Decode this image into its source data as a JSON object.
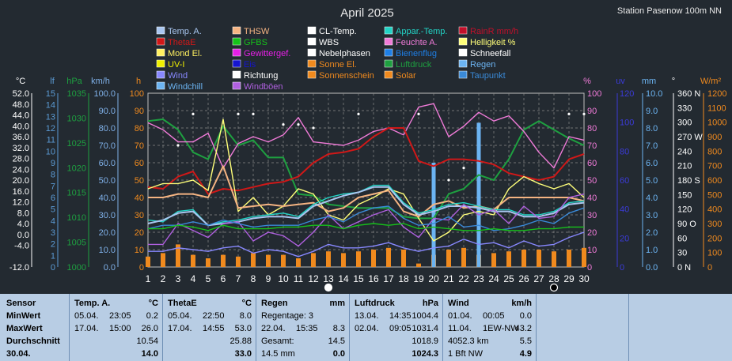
{
  "title": "April 2025",
  "station": "Station Pasenow 100m NN",
  "legend": [
    {
      "label": "Temp. A.",
      "color": "#a9c6f0"
    },
    {
      "label": "THSW",
      "color": "#f5b482"
    },
    {
      "label": "CL-Temp.",
      "color": "#ffffff"
    },
    {
      "label": "Appar.-Temp.",
      "color": "#22d3c5"
    },
    {
      "label": "RainR mm/h",
      "color": "#c0102a"
    },
    {
      "label": "ThetaE",
      "color": "#d01818"
    },
    {
      "label": "GFBS",
      "color": "#16c21a"
    },
    {
      "label": "WBS",
      "color": "#ffffff"
    },
    {
      "label": "Feuchte A.",
      "color": "#f07bd8"
    },
    {
      "label": "Helligkeit %",
      "color": "#ffff7a"
    },
    {
      "label": "Mond El.",
      "color": "#fff060"
    },
    {
      "label": "Gewittergef.",
      "color": "#e620e6"
    },
    {
      "label": "Nebelphasen",
      "color": "#ffffff"
    },
    {
      "label": "Bienenflug",
      "color": "#1e7fe6"
    },
    {
      "label": "Schneefall",
      "color": "#ffffff"
    },
    {
      "label": "UV-I",
      "color": "#f0f000"
    },
    {
      "label": "Eis",
      "color": "#1515d0"
    },
    {
      "label": "Sonne El.",
      "color": "#f08a1e"
    },
    {
      "label": "Luftdruck",
      "color": "#1ea040"
    },
    {
      "label": "Regen",
      "color": "#6cb4f2"
    },
    {
      "label": "Wind",
      "color": "#8888ff"
    },
    {
      "label": "Richtung",
      "color": "#ffffff"
    },
    {
      "label": "Sonnenschein",
      "color": "#f08a1e"
    },
    {
      "label": "Solar",
      "color": "#f08a1e"
    },
    {
      "label": "Taupunkt",
      "color": "#3a8ad8"
    },
    {
      "label": "Windchill",
      "color": "#6cb4f2"
    },
    {
      "label": "Windböen",
      "color": "#b060e0"
    }
  ],
  "axes_units": {
    "temp": "°C",
    "bft": "lf",
    "pressure": "hPa",
    "wind": "km/h",
    "hours": "h",
    "percent": "%",
    "uv": "uv",
    "rain": "mm",
    "direction": "°",
    "solar": "W/m²"
  },
  "chart_data": {
    "type": "line",
    "x": [
      1,
      2,
      3,
      4,
      5,
      6,
      7,
      8,
      9,
      10,
      11,
      12,
      13,
      14,
      15,
      16,
      17,
      18,
      19,
      20,
      21,
      22,
      23,
      24,
      25,
      26,
      27,
      28,
      29,
      30
    ],
    "xlim": [
      1,
      30
    ],
    "ylim": [
      0,
      100
    ],
    "grid": true,
    "axes": {
      "temp_c": {
        "min": -12,
        "max": 52,
        "ticks": [
          "52.0",
          "48.0",
          "44.0",
          "40.0",
          "36.0",
          "32.0",
          "28.0",
          "24.0",
          "20.0",
          "16.0",
          "12.0",
          "8.0",
          "4.0",
          "0.0",
          "-4.0",
          "",
          "-12.0"
        ]
      },
      "bft": {
        "min": 0,
        "max": 15,
        "ticks": [
          "15",
          "14",
          "13",
          "12",
          "11",
          "10",
          "9",
          "8",
          "7",
          "6",
          "5",
          "4",
          "3",
          "2",
          "1",
          "0"
        ]
      },
      "hpa": {
        "min": 1000,
        "max": 1035,
        "ticks": [
          "1035",
          "1030",
          "1025",
          "1020",
          "1015",
          "1010",
          "1005",
          "1000"
        ]
      },
      "kmh": {
        "min": 0,
        "max": 100,
        "ticks": [
          "100.0",
          "90.0",
          "80.0",
          "70.0",
          "60.0",
          "50.0",
          "40.0",
          "30.0",
          "20.0",
          "10.0",
          "0.0"
        ]
      },
      "hours": {
        "min": 0,
        "max": 100,
        "ticks": [
          "100",
          "90",
          "80",
          "70",
          "60",
          "50",
          "40",
          "30",
          "20",
          "10",
          "0"
        ]
      },
      "percent": {
        "min": 0,
        "max": 100,
        "ticks": [
          "100",
          "90",
          "80",
          "70",
          "60",
          "50",
          "40",
          "30",
          "20",
          "10",
          "0"
        ]
      },
      "uv": {
        "min": 0,
        "max": 120,
        "ticks": [
          "120",
          "100",
          "80",
          "60",
          "40",
          "20",
          "0"
        ]
      },
      "rain_mm": {
        "min": 0,
        "max": 10,
        "ticks": [
          "10.0",
          "9.0",
          "8.0",
          "7.0",
          "6.0",
          "5.0",
          "4.0",
          "3.0",
          "2.0",
          "1.0",
          "0.0"
        ]
      },
      "direction": {
        "min": 0,
        "max": 360,
        "ticks": [
          "360 N",
          "330",
          "300",
          "270 W",
          "240",
          "210",
          "180 S",
          "150",
          "120",
          "90 O",
          "60",
          "30",
          "0 N"
        ]
      },
      "solar": {
        "min": 0,
        "max": 1200,
        "ticks": [
          "1200",
          "1100",
          "1000",
          "900",
          "800",
          "700",
          "600",
          "500",
          "400",
          "300",
          "200",
          "100",
          "0"
        ]
      }
    },
    "series": [
      {
        "name": "Luftdruck",
        "color": "#1ea040",
        "values": [
          84,
          85,
          79,
          66,
          62,
          81,
          70,
          73,
          63,
          63,
          42,
          41,
          36,
          35,
          34,
          34,
          34,
          29,
          28,
          28,
          42,
          45,
          53,
          50,
          62,
          79,
          84,
          79,
          74,
          70
        ]
      },
      {
        "name": "Feuchte A.",
        "color": "#f07bd8",
        "values": [
          83,
          79,
          72,
          72,
          77,
          57,
          71,
          75,
          72,
          76,
          86,
          72,
          71,
          70,
          73,
          78,
          80,
          76,
          92,
          94,
          75,
          81,
          89,
          84,
          87,
          78,
          66,
          57,
          75,
          73
        ]
      },
      {
        "name": "ThetaE",
        "color": "#d01818",
        "values": [
          46,
          45,
          52,
          55,
          42,
          45,
          44,
          46,
          48,
          49,
          52,
          60,
          65,
          66,
          68,
          75,
          80,
          80,
          61,
          58,
          62,
          62,
          61,
          59,
          54,
          52,
          50,
          52,
          62,
          65
        ]
      },
      {
        "name": "Helligkeit %",
        "color": "#ffff7a",
        "values": [
          45,
          48,
          48,
          50,
          44,
          85,
          32,
          40,
          30,
          35,
          45,
          42,
          30,
          27,
          36,
          40,
          45,
          42,
          28,
          15,
          20,
          30,
          32,
          30,
          45,
          52,
          48,
          45,
          48,
          40
        ]
      },
      {
        "name": "THSW",
        "color": "#f5b482",
        "values": [
          40,
          40,
          42,
          42,
          40,
          58,
          34,
          35,
          36,
          35,
          36,
          37,
          32,
          34,
          40,
          42,
          44,
          32,
          29,
          36,
          38,
          34,
          35,
          33,
          40,
          40,
          40,
          40,
          40,
          38
        ]
      },
      {
        "name": "Appar.-Temp.",
        "color": "#22d3c5",
        "values": [
          27,
          26,
          32,
          33,
          24,
          26,
          27,
          29,
          30,
          31,
          29,
          36,
          40,
          42,
          43,
          47,
          47,
          37,
          31,
          33,
          36,
          37,
          35,
          33,
          33,
          30,
          30,
          32,
          37,
          38
        ]
      },
      {
        "name": "Temp. A.",
        "color": "#a9c6f0",
        "values": [
          25,
          27,
          31,
          32,
          24,
          25,
          26,
          28,
          29,
          29,
          28,
          35,
          38,
          41,
          43,
          46,
          46,
          36,
          30,
          32,
          35,
          35,
          34,
          32,
          32,
          29,
          29,
          31,
          36,
          37
        ]
      },
      {
        "name": "Windböen",
        "color": "#b060e0",
        "values": [
          13,
          13,
          25,
          21,
          17,
          25,
          26,
          15,
          20,
          18,
          12,
          20,
          30,
          22,
          26,
          30,
          33,
          23,
          17,
          28,
          27,
          36,
          30,
          33,
          25,
          35,
          28,
          29,
          40,
          42
        ]
      },
      {
        "name": "Taupunkt",
        "color": "#3a8ad8",
        "values": [
          22,
          24,
          24,
          26,
          24,
          27,
          25,
          23,
          24,
          24,
          24,
          27,
          29,
          26,
          31,
          34,
          35,
          28,
          24,
          25,
          29,
          23,
          24,
          21,
          22,
          24,
          27,
          25,
          31,
          34
        ]
      },
      {
        "name": "Wind",
        "color": "#8888ff",
        "values": [
          9,
          9,
          11,
          10,
          9,
          11,
          12,
          8,
          10,
          9,
          6,
          9,
          13,
          11,
          11,
          12,
          14,
          11,
          9,
          11,
          12,
          16,
          13,
          14,
          11,
          15,
          12,
          13,
          17,
          20
        ]
      },
      {
        "name": "GFBS",
        "color": "#16c21a",
        "values": [
          22,
          22,
          24,
          23,
          21,
          24,
          22,
          22,
          22,
          23,
          23,
          24,
          24,
          22,
          24,
          25,
          24,
          25,
          22,
          23,
          22,
          21,
          21,
          22,
          21,
          21,
          22,
          22,
          23,
          23
        ]
      }
    ],
    "sunshine_bars": [
      6,
      8,
      13,
      7,
      5,
      7,
      6,
      8,
      7,
      7,
      5,
      8,
      9,
      8,
      9,
      10,
      11,
      10,
      2,
      7,
      10,
      11,
      7,
      8,
      9,
      10,
      10,
      9,
      10,
      11
    ],
    "regen_bars": [
      0,
      0,
      0,
      0,
      0,
      0,
      0,
      0,
      0,
      0,
      0,
      0,
      0,
      0,
      0,
      0,
      0,
      0,
      0,
      60,
      0,
      0,
      83,
      0,
      0,
      0,
      0,
      0,
      0,
      0
    ],
    "wind_direction_points": [
      null,
      null,
      70,
      88,
      null,
      null,
      88,
      88,
      null,
      82,
      82,
      80,
      null,
      null,
      88,
      null,
      null,
      null,
      88,
      null,
      50,
      57,
      null,
      null,
      null,
      null,
      null,
      null,
      88,
      88
    ],
    "moon_markers": [
      {
        "day": 13,
        "phase": "full"
      },
      {
        "day": 28,
        "phase": "new"
      }
    ]
  },
  "table": {
    "row_labels": [
      "Sensor",
      "MinWert",
      "MaxWert",
      "Durchschnitt",
      "30.04."
    ],
    "columns": [
      {
        "title": "Temp. A.",
        "unit": "°C",
        "rows": [
          [
            "05.04.",
            "23:05",
            "0.2"
          ],
          [
            "17.04.",
            "15:00",
            "26.0"
          ],
          [
            "",
            "",
            "10.54"
          ],
          [
            "",
            "",
            "14.0"
          ]
        ]
      },
      {
        "title": "ThetaE",
        "unit": "°C",
        "rows": [
          [
            "05.04.",
            "22:50",
            "8.0"
          ],
          [
            "17.04.",
            "14:55",
            "53.0"
          ],
          [
            "",
            "",
            "25.88"
          ],
          [
            "",
            "",
            "33.0"
          ]
        ]
      },
      {
        "title": "Regen",
        "unit": "mm",
        "rows": [
          [
            "Regentage: 3",
            "",
            ""
          ],
          [
            "22.04.",
            "15:35",
            "8.3"
          ],
          [
            "Gesamt:",
            "",
            "14.5"
          ],
          [
            "14.5 mm",
            "",
            "0.0"
          ]
        ]
      },
      {
        "title": "Luftdruck",
        "unit": "hPa",
        "rows": [
          [
            "13.04.",
            "14:35",
            "1004.4"
          ],
          [
            "02.04.",
            "09:05",
            "1031.4"
          ],
          [
            "",
            "",
            "1018.9"
          ],
          [
            "",
            "",
            "1024.3"
          ]
        ]
      },
      {
        "title": "Wind",
        "unit": "km/h",
        "rows": [
          [
            "01.04.",
            "00:05",
            "0.0"
          ],
          [
            "11.04.",
            "1EW-NW",
            "43.2"
          ],
          [
            "4052.3 km",
            "",
            "5.5"
          ],
          [
            "1 Bft NW",
            "",
            "4.9"
          ]
        ]
      }
    ]
  }
}
